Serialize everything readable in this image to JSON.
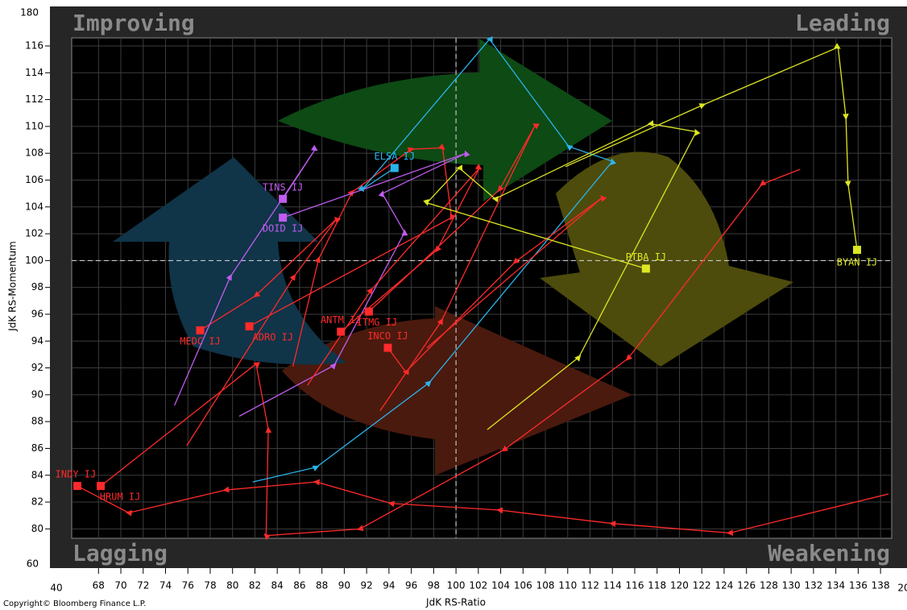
{
  "chart_data": {
    "type": "scatter",
    "quadrant_labels": {
      "top_left": "Improving",
      "top_right": "Leading",
      "bottom_left": "Lagging",
      "bottom_right": "Weakening"
    },
    "x_label": "JdK RS-Ratio",
    "y_label": "JdK RS-Momentum",
    "copyright": "Copyright© Bloomberg Finance L.P.",
    "xlim": [
      65.6,
      139.0
    ],
    "ylim": [
      79.3,
      116.6
    ],
    "xticks": [
      68,
      70,
      72,
      74,
      76,
      78,
      80,
      82,
      84,
      86,
      88,
      90,
      92,
      94,
      96,
      98,
      100,
      102,
      104,
      106,
      108,
      110,
      112,
      114,
      116,
      118,
      120,
      122,
      124,
      126,
      128,
      130,
      132,
      134,
      136,
      138
    ],
    "yticks": [
      80,
      82,
      84,
      86,
      88,
      90,
      92,
      94,
      96,
      98,
      100,
      102,
      104,
      106,
      108,
      110,
      112,
      114,
      116
    ],
    "x_break_labels": [
      40,
      20
    ],
    "y_break_labels": [
      180,
      60
    ],
    "center": [
      100,
      100
    ],
    "grid": true,
    "series": [
      {
        "name": "INDY IJ",
        "color": "#ff2a2a",
        "x": [
          138.7,
          124.5,
          114.0,
          103.9,
          94.2,
          87.5,
          79.4,
          70.7,
          66.1
        ],
        "y": [
          82.6,
          79.7,
          80.4,
          81.4,
          81.9,
          83.5,
          82.9,
          81.2,
          83.2
        ]
      },
      {
        "name": "HRUM IJ",
        "color": "#ff2a2a",
        "x": [
          130.8,
          127.4,
          115.4,
          104.3,
          91.4,
          83.0,
          83.2,
          82.1,
          68.2
        ],
        "y": [
          106.8,
          105.7,
          92.7,
          85.9,
          80.0,
          79.5,
          87.4,
          92.3,
          83.2
        ]
      },
      {
        "name": "MEDC IJ",
        "color": "#ff2a2a",
        "x": [
          75.9,
          85.5,
          89.3,
          82.1,
          77.1
        ],
        "y": [
          86.2,
          98.8,
          103.1,
          97.4,
          94.8
        ]
      },
      {
        "name": "ADRO IJ",
        "color": "#ff2a2a",
        "x": [
          85.4,
          87.7,
          90.7,
          96.0,
          98.8,
          99.6,
          81.5
        ],
        "y": [
          92.1,
          100.1,
          105.1,
          108.3,
          108.4,
          103.2,
          95.1
        ]
      },
      {
        "name": "TINS IJ",
        "color": "#c05cf0",
        "x": [
          74.8,
          79.8,
          87.4,
          84.5
        ],
        "y": [
          89.2,
          98.8,
          108.3,
          104.6
        ]
      },
      {
        "name": "DOID IJ",
        "color": "#c05cf0",
        "x": [
          80.6,
          89.1,
          95.4,
          93.4,
          100.9,
          84.5
        ],
        "y": [
          88.4,
          92.2,
          102.1,
          105.0,
          108.0,
          103.2
        ]
      },
      {
        "name": "ELSA IJ",
        "color": "#2ab4ec",
        "x": [
          81.8,
          87.5,
          97.6,
          114.0,
          110.1,
          103.0,
          91.6,
          94.5
        ],
        "y": [
          83.5,
          84.6,
          90.9,
          107.4,
          108.5,
          116.5,
          105.3,
          106.9
        ]
      },
      {
        "name": "ANTM IJ",
        "color": "#ff2a2a",
        "x": [
          86.7,
          92.4,
          102.1,
          98.3,
          89.7
        ],
        "y": [
          90.7,
          97.8,
          106.9,
          100.8,
          94.7
        ]
      },
      {
        "name": "ITMG IJ",
        "color": "#ff2a2a",
        "x": [
          93.2,
          98.7,
          107.1,
          103.9,
          92.2
        ],
        "y": [
          88.8,
          95.5,
          110.1,
          105.3,
          96.2
        ]
      },
      {
        "name": "INCO IJ",
        "color": "#ff2a2a",
        "x": [
          97.4,
          113.1,
          105.3,
          95.5,
          93.9
        ],
        "y": [
          93.5,
          104.7,
          99.9,
          91.7,
          93.5
        ]
      },
      {
        "name": "PTBA IJ",
        "color": "#dde622",
        "x": [
          102.8,
          111.0,
          121.5,
          117.4,
          103.5,
          100.3,
          97.4,
          117.0
        ],
        "y": [
          87.4,
          92.8,
          109.6,
          110.2,
          104.6,
          106.9,
          104.3,
          99.4
        ]
      },
      {
        "name": "BYAN IJ",
        "color": "#dde622",
        "x": [
          109.8,
          122.1,
          134.2,
          134.9,
          135.1,
          135.9
        ],
        "y": [
          107.0,
          111.6,
          115.9,
          110.7,
          105.7,
          100.8
        ]
      }
    ]
  }
}
